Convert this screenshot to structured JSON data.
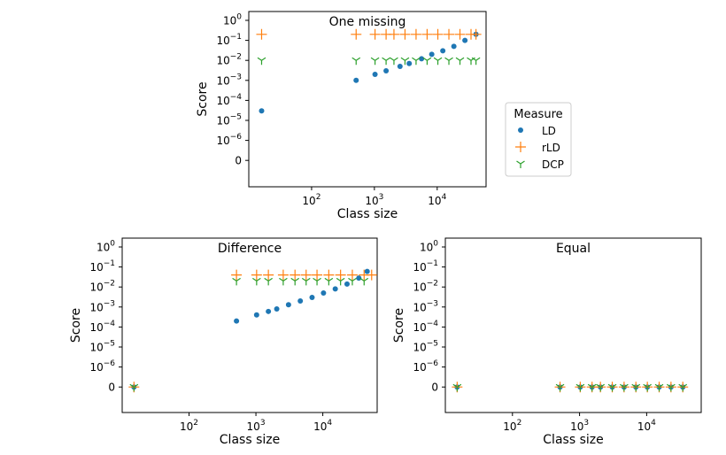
{
  "chart_data": [
    {
      "type": "scatter",
      "title": "One missing",
      "xlabel": "Class size",
      "ylabel": "Score",
      "x_scale": "log",
      "xlim": [
        10,
        60000
      ],
      "x_ticks": [
        {
          "value": 100,
          "base": "10",
          "exp": "2"
        },
        {
          "value": 1000,
          "base": "10",
          "exp": "3"
        },
        {
          "value": 10000,
          "base": "10",
          "exp": "4"
        }
      ],
      "y_scale": "symlog",
      "y_ticks": [
        {
          "value": 1,
          "base": "10",
          "exp": "0"
        },
        {
          "value": 0.1,
          "base": "10",
          "exp": "−1"
        },
        {
          "value": 0.01,
          "base": "10",
          "exp": "−2"
        },
        {
          "value": 0.001,
          "base": "10",
          "exp": "−3"
        },
        {
          "value": 0.0001,
          "base": "10",
          "exp": "−4"
        },
        {
          "value": 1e-05,
          "base": "10",
          "exp": "−5"
        },
        {
          "value": 1e-06,
          "base": "10",
          "exp": "−6"
        },
        {
          "value": 0,
          "base": "0",
          "exp": ""
        }
      ],
      "series": [
        {
          "name": "LD",
          "marker": "circle",
          "color": "#1f77b4",
          "points": [
            [
              16,
              3e-05
            ],
            [
              512,
              0.001
            ],
            [
              1024,
              0.002
            ],
            [
              1536,
              0.003
            ],
            [
              2560,
              0.005
            ],
            [
              3584,
              0.007
            ],
            [
              5632,
              0.012
            ],
            [
              8192,
              0.02
            ],
            [
              12288,
              0.03
            ],
            [
              18432,
              0.05
            ],
            [
              27648,
              0.1
            ],
            [
              41472,
              0.2
            ]
          ]
        },
        {
          "name": "rLD",
          "marker": "plus",
          "color": "#ff7f0e",
          "points": [
            [
              16,
              0.2
            ],
            [
              512,
              0.2
            ],
            [
              1024,
              0.2
            ],
            [
              1536,
              0.2
            ],
            [
              2048,
              0.2
            ],
            [
              3072,
              0.2
            ],
            [
              4608,
              0.2
            ],
            [
              6912,
              0.2
            ],
            [
              10240,
              0.2
            ],
            [
              15360,
              0.2
            ],
            [
              23040,
              0.2
            ],
            [
              34560,
              0.2
            ],
            [
              41472,
              0.2
            ]
          ]
        },
        {
          "name": "DCP",
          "marker": "tri",
          "color": "#2ca02c",
          "points": [
            [
              16,
              0.01
            ],
            [
              512,
              0.01
            ],
            [
              1024,
              0.01
            ],
            [
              1536,
              0.01
            ],
            [
              2048,
              0.01
            ],
            [
              3072,
              0.01
            ],
            [
              4608,
              0.01
            ],
            [
              6912,
              0.01
            ],
            [
              10240,
              0.01
            ],
            [
              15360,
              0.01
            ],
            [
              23040,
              0.01
            ],
            [
              34560,
              0.01
            ],
            [
              41472,
              0.01
            ]
          ]
        }
      ]
    },
    {
      "type": "scatter",
      "title": "Difference",
      "xlabel": "Class size",
      "ylabel": "Score",
      "x_scale": "log",
      "xlim": [
        10,
        65000
      ],
      "x_ticks": [
        {
          "value": 100,
          "base": "10",
          "exp": "2"
        },
        {
          "value": 1000,
          "base": "10",
          "exp": "3"
        },
        {
          "value": 10000,
          "base": "10",
          "exp": "4"
        }
      ],
      "y_scale": "symlog",
      "y_ticks": [
        {
          "value": 1,
          "base": "10",
          "exp": "0"
        },
        {
          "value": 0.1,
          "base": "10",
          "exp": "−1"
        },
        {
          "value": 0.01,
          "base": "10",
          "exp": "−2"
        },
        {
          "value": 0.001,
          "base": "10",
          "exp": "−3"
        },
        {
          "value": 0.0001,
          "base": "10",
          "exp": "−4"
        },
        {
          "value": 1e-05,
          "base": "10",
          "exp": "−5"
        },
        {
          "value": 1e-06,
          "base": "10",
          "exp": "−6"
        },
        {
          "value": 0,
          "base": "0",
          "exp": ""
        }
      ],
      "series": [
        {
          "name": "LD",
          "marker": "circle",
          "color": "#1f77b4",
          "points": [
            [
              15,
              0
            ],
            [
              512,
              0.0002
            ],
            [
              1024,
              0.0004
            ],
            [
              1536,
              0.0006
            ],
            [
              2048,
              0.0008
            ],
            [
              3072,
              0.0013
            ],
            [
              4608,
              0.002
            ],
            [
              6912,
              0.003
            ],
            [
              10240,
              0.005
            ],
            [
              15360,
              0.008
            ],
            [
              23040,
              0.014
            ],
            [
              34560,
              0.028
            ],
            [
              46080,
              0.06
            ]
          ]
        },
        {
          "name": "rLD",
          "marker": "plus",
          "color": "#ff7f0e",
          "points": [
            [
              15,
              0
            ],
            [
              512,
              0.04
            ],
            [
              1024,
              0.04
            ],
            [
              1536,
              0.04
            ],
            [
              2560,
              0.04
            ],
            [
              3840,
              0.04
            ],
            [
              5632,
              0.04
            ],
            [
              8192,
              0.04
            ],
            [
              12288,
              0.04
            ],
            [
              18432,
              0.04
            ],
            [
              27648,
              0.04
            ],
            [
              41472,
              0.04
            ],
            [
              53760,
              0.04
            ]
          ]
        },
        {
          "name": "DCP",
          "marker": "tri",
          "color": "#2ca02c",
          "points": [
            [
              15,
              0
            ],
            [
              512,
              0.02
            ],
            [
              1024,
              0.02
            ],
            [
              1536,
              0.02
            ],
            [
              2560,
              0.02
            ],
            [
              3840,
              0.02
            ],
            [
              5632,
              0.02
            ],
            [
              8192,
              0.02
            ],
            [
              12288,
              0.02
            ],
            [
              18432,
              0.02
            ],
            [
              27648,
              0.02
            ],
            [
              41472,
              0.02
            ]
          ]
        }
      ]
    },
    {
      "type": "scatter",
      "title": "Equal",
      "xlabel": "Class size",
      "ylabel": "Score",
      "x_scale": "log",
      "xlim": [
        10,
        65000
      ],
      "x_ticks": [
        {
          "value": 100,
          "base": "10",
          "exp": "2"
        },
        {
          "value": 1000,
          "base": "10",
          "exp": "3"
        },
        {
          "value": 10000,
          "base": "10",
          "exp": "4"
        }
      ],
      "y_scale": "symlog",
      "y_ticks": [
        {
          "value": 1,
          "base": "10",
          "exp": "0"
        },
        {
          "value": 0.1,
          "base": "10",
          "exp": "−1"
        },
        {
          "value": 0.01,
          "base": "10",
          "exp": "−2"
        },
        {
          "value": 0.001,
          "base": "10",
          "exp": "−3"
        },
        {
          "value": 0.0001,
          "base": "10",
          "exp": "−4"
        },
        {
          "value": 1e-05,
          "base": "10",
          "exp": "−5"
        },
        {
          "value": 1e-06,
          "base": "10",
          "exp": "−6"
        },
        {
          "value": 0,
          "base": "0",
          "exp": ""
        }
      ],
      "series": [
        {
          "name": "LD",
          "marker": "circle",
          "color": "#1f77b4",
          "points": [
            [
              15,
              0
            ],
            [
              512,
              0
            ],
            [
              1024,
              0
            ],
            [
              1536,
              0
            ],
            [
              2048,
              0
            ],
            [
              3072,
              0
            ],
            [
              4608,
              0
            ],
            [
              6912,
              0
            ],
            [
              10240,
              0
            ],
            [
              15360,
              0
            ],
            [
              23040,
              0
            ],
            [
              34560,
              0
            ]
          ]
        },
        {
          "name": "rLD",
          "marker": "plus",
          "color": "#ff7f0e",
          "points": [
            [
              15,
              0
            ],
            [
              512,
              0
            ],
            [
              1024,
              0
            ],
            [
              1536,
              0
            ],
            [
              2048,
              0
            ],
            [
              3072,
              0
            ],
            [
              4608,
              0
            ],
            [
              6912,
              0
            ],
            [
              10240,
              0
            ],
            [
              15360,
              0
            ],
            [
              23040,
              0
            ],
            [
              34560,
              0
            ]
          ]
        },
        {
          "name": "DCP",
          "marker": "tri",
          "color": "#2ca02c",
          "points": [
            [
              15,
              0
            ],
            [
              512,
              0
            ],
            [
              1024,
              0
            ],
            [
              1536,
              0
            ],
            [
              2048,
              0
            ],
            [
              3072,
              0
            ],
            [
              4608,
              0
            ],
            [
              6912,
              0
            ],
            [
              10240,
              0
            ],
            [
              15360,
              0
            ],
            [
              23040,
              0
            ],
            [
              34560,
              0
            ]
          ]
        }
      ]
    }
  ],
  "legend": {
    "title": "Measure",
    "position": "right-center",
    "items": [
      {
        "label": "LD",
        "marker": "circle",
        "color": "#1f77b4"
      },
      {
        "label": "rLD",
        "marker": "plus",
        "color": "#ff7f0e"
      },
      {
        "label": "DCP",
        "marker": "tri",
        "color": "#2ca02c"
      }
    ]
  }
}
